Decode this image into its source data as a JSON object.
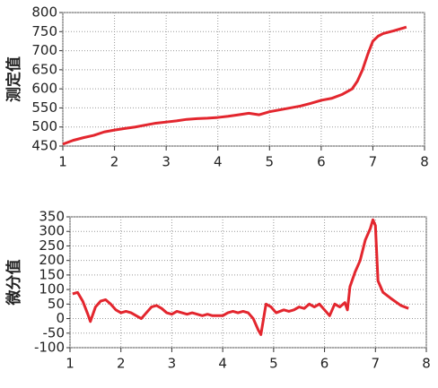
{
  "chart_data": [
    {
      "type": "line",
      "ylabel": "测定值",
      "x": [
        1.0,
        1.2,
        1.4,
        1.6,
        1.8,
        2.0,
        2.2,
        2.4,
        2.6,
        2.8,
        3.0,
        3.2,
        3.4,
        3.6,
        3.8,
        4.0,
        4.2,
        4.4,
        4.6,
        4.8,
        5.0,
        5.2,
        5.4,
        5.6,
        5.8,
        6.0,
        6.2,
        6.4,
        6.6,
        6.7,
        6.8,
        6.9,
        7.0,
        7.1,
        7.2,
        7.4,
        7.6,
        7.65
      ],
      "series": [
        {
          "color": "#e3262e",
          "values": [
            455,
            465,
            472,
            478,
            487,
            492,
            496,
            500,
            505,
            510,
            513,
            516,
            520,
            522,
            523,
            525,
            528,
            532,
            536,
            532,
            540,
            545,
            550,
            555,
            562,
            570,
            575,
            585,
            600,
            620,
            650,
            690,
            725,
            738,
            745,
            752,
            760,
            762
          ]
        }
      ],
      "xlim": [
        1,
        8
      ],
      "xticks": [
        1,
        2,
        3,
        4,
        5,
        6,
        7,
        8
      ],
      "ylim": [
        450,
        800
      ],
      "yticks": [
        450,
        500,
        550,
        600,
        650,
        700,
        750,
        800
      ],
      "grid": true
    },
    {
      "type": "line",
      "ylabel": "微分值",
      "x": [
        1.05,
        1.15,
        1.25,
        1.35,
        1.4,
        1.5,
        1.6,
        1.7,
        1.8,
        1.9,
        2.0,
        2.1,
        2.2,
        2.3,
        2.4,
        2.5,
        2.6,
        2.7,
        2.8,
        2.9,
        3.0,
        3.1,
        3.2,
        3.3,
        3.4,
        3.5,
        3.6,
        3.7,
        3.8,
        4.0,
        4.1,
        4.2,
        4.3,
        4.4,
        4.5,
        4.6,
        4.7,
        4.75,
        4.85,
        4.95,
        5.05,
        5.2,
        5.3,
        5.4,
        5.5,
        5.6,
        5.7,
        5.8,
        5.9,
        6.0,
        6.1,
        6.2,
        6.3,
        6.4,
        6.45,
        6.5,
        6.6,
        6.7,
        6.8,
        6.9,
        6.95,
        7.0,
        7.05,
        7.15,
        7.3,
        7.5,
        7.65
      ],
      "series": [
        {
          "color": "#e3262e",
          "values": [
            85,
            90,
            60,
            15,
            -10,
            40,
            60,
            65,
            50,
            30,
            20,
            25,
            20,
            10,
            0,
            20,
            40,
            45,
            35,
            20,
            15,
            25,
            20,
            15,
            20,
            15,
            10,
            15,
            10,
            10,
            20,
            25,
            20,
            25,
            20,
            0,
            -40,
            -55,
            50,
            40,
            20,
            30,
            25,
            30,
            40,
            35,
            50,
            40,
            50,
            30,
            10,
            50,
            40,
            55,
            30,
            110,
            160,
            200,
            270,
            310,
            340,
            320,
            130,
            90,
            70,
            45,
            35
          ]
        }
      ],
      "xlim": [
        1,
        8
      ],
      "xticks": [
        1,
        2,
        3,
        4,
        5,
        6,
        7,
        8
      ],
      "ylim": [
        -100,
        350
      ],
      "yticks": [
        -100,
        -50,
        0,
        50,
        100,
        150,
        200,
        250,
        300,
        350
      ],
      "grid": true
    }
  ]
}
